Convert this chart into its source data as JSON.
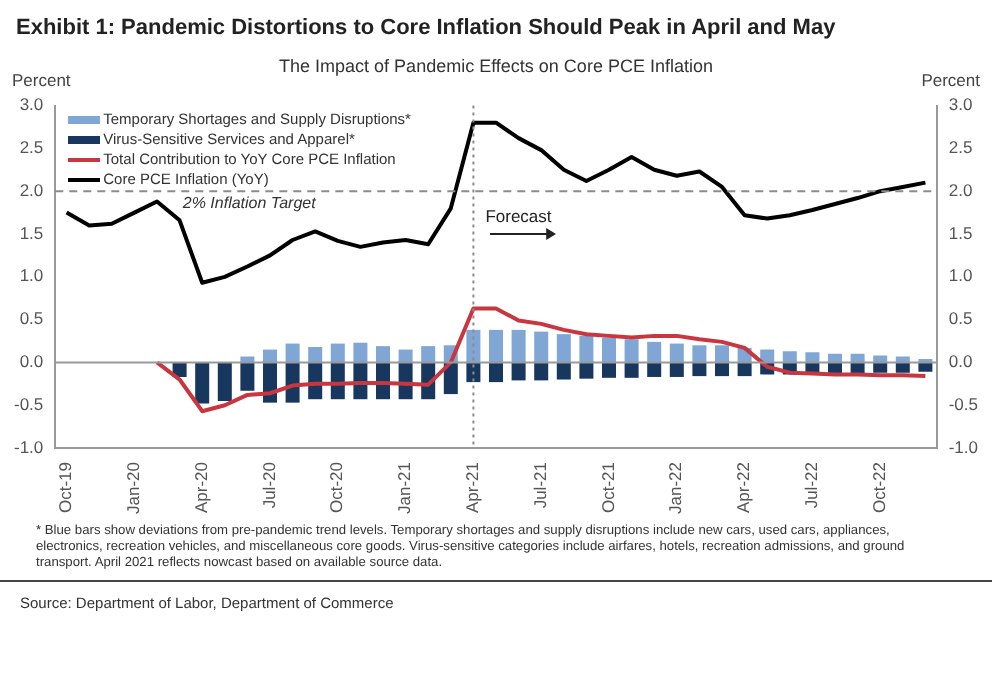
{
  "chart_data": {
    "type": "bar",
    "title": "Exhibit 1: Pandemic Distortions to Core Inflation Should Peak in April and May",
    "subtitle": "The Impact of Pandemic Effects on Core PCE Inflation",
    "ylabel": "Percent",
    "y2label": "Percent",
    "categories": [
      "Oct-19",
      null,
      null,
      "Jan-20",
      null,
      null,
      "Apr-20",
      null,
      null,
      "Jul-20",
      null,
      null,
      "Oct-20",
      null,
      null,
      "Jan-21",
      null,
      null,
      "Apr-21",
      null,
      null,
      "Jul-21",
      null,
      null,
      "Oct-21",
      null,
      null,
      "Jan-22",
      null,
      null,
      "Apr-22",
      null,
      null,
      "Jul-22",
      null,
      null,
      "Oct-22",
      null,
      null
    ],
    "series": [
      {
        "name": "Temporary Shortages and Supply Disruptions*",
        "color": "#7fa6d4",
        "values": [
          null,
          null,
          null,
          null,
          null,
          0,
          0,
          0,
          0.07,
          0.15,
          0.22,
          0.18,
          0.22,
          0.23,
          0.19,
          0.15,
          0.19,
          0.2,
          0.38,
          0.38,
          0.38,
          0.36,
          0.33,
          0.31,
          0.29,
          0.27,
          0.24,
          0.22,
          0.2,
          0.2,
          0.17,
          0.15,
          0.13,
          0.12,
          0.1,
          0.1,
          0.08,
          0.07,
          0.04
        ]
      },
      {
        "name": "Virus-Sensitive Services and Apparel*",
        "color": "#17375e",
        "values": [
          null,
          null,
          null,
          null,
          null,
          -0.17,
          -0.48,
          -0.45,
          -0.33,
          -0.47,
          -0.47,
          -0.43,
          -0.43,
          -0.43,
          -0.43,
          -0.43,
          -0.43,
          -0.37,
          -0.23,
          -0.23,
          -0.21,
          -0.21,
          -0.2,
          -0.19,
          -0.18,
          -0.18,
          -0.17,
          -0.17,
          -0.16,
          -0.16,
          -0.16,
          -0.14,
          -0.14,
          -0.13,
          -0.13,
          -0.13,
          -0.12,
          -0.12,
          -0.11
        ]
      },
      {
        "name": "Total Contribution to YoY Core PCE Inflation",
        "type": "line",
        "color": "#c8373f",
        "values": [
          null,
          null,
          null,
          null,
          0,
          -0.2,
          -0.57,
          -0.5,
          -0.38,
          -0.36,
          -0.27,
          -0.25,
          -0.25,
          -0.24,
          -0.24,
          -0.25,
          -0.26,
          0.0,
          0.63,
          0.63,
          0.49,
          0.45,
          0.38,
          0.33,
          0.31,
          0.29,
          0.31,
          0.31,
          0.27,
          0.24,
          0.17,
          -0.05,
          -0.12,
          -0.13,
          -0.14,
          -0.14,
          -0.15,
          -0.15,
          -0.16
        ]
      },
      {
        "name": "Core PCE Inflation (YoY)",
        "type": "line",
        "color": "#000000",
        "values": [
          1.75,
          1.6,
          1.62,
          1.75,
          1.88,
          1.66,
          0.93,
          1.0,
          1.12,
          1.25,
          1.43,
          1.53,
          1.42,
          1.35,
          1.4,
          1.43,
          1.38,
          1.8,
          2.8,
          2.8,
          2.62,
          2.48,
          2.25,
          2.12,
          2.25,
          2.4,
          2.25,
          2.18,
          2.23,
          2.05,
          1.72,
          1.68,
          1.72,
          1.78,
          1.85,
          1.92,
          2.0,
          2.05,
          2.1
        ]
      }
    ],
    "stacked": true,
    "ylim": [
      -1,
      3
    ],
    "yticks": [
      {
        "value": -1,
        "label": "-1.0"
      },
      {
        "value": -0.5,
        "label": "-0.5"
      },
      {
        "value": 0,
        "label": "0.0"
      },
      {
        "value": 0.5,
        "label": "0.5"
      },
      {
        "value": 1,
        "label": "1.0"
      },
      {
        "value": 1.5,
        "label": "1.5"
      },
      {
        "value": 2,
        "label": "2.0"
      },
      {
        "value": 2.5,
        "label": "2.5"
      },
      {
        "value": 3,
        "label": "3.0"
      }
    ],
    "y2lim": [
      -1,
      3
    ],
    "y2ticks": [
      {
        "value": -1,
        "label": "-1.0"
      },
      {
        "value": -0.5,
        "label": "-0.5"
      },
      {
        "value": 0,
        "label": "0.0"
      },
      {
        "value": 0.5,
        "label": "0.5"
      },
      {
        "value": 1,
        "label": "1.0"
      },
      {
        "value": 1.5,
        "label": "1.5"
      },
      {
        "value": 2,
        "label": "2.0"
      },
      {
        "value": 2.5,
        "label": "2.5"
      },
      {
        "value": 3,
        "label": "3.0"
      }
    ],
    "ref_lines": [
      {
        "axis": "y",
        "value": 2,
        "label": "2% Inflation Target",
        "color": "#8c8c8c",
        "line_style": "dashed"
      },
      {
        "axis": "x",
        "value": "Apr-21",
        "color": "#8c8c8c",
        "line_style": "dotted"
      }
    ],
    "annotations": [
      {
        "text": "Forecast",
        "x": "Apr-21",
        "y": 1.6
      },
      "* Blue bars show deviations from pre-pandemic trend levels.  Temporary shortages and supply disruptions include new cars, used cars, appliances, electronics, recreation vehicles, and miscellaneous core goods. Virus-sensitive categories include airfares, hotels, recreation admissions, and ground transport. April 2021 reflects nowcast based on available source data.",
      "Source: Department of Labor, Department of Commerce"
    ],
    "legend": "top left",
    "marker": "none",
    "line_style": "solid"
  }
}
